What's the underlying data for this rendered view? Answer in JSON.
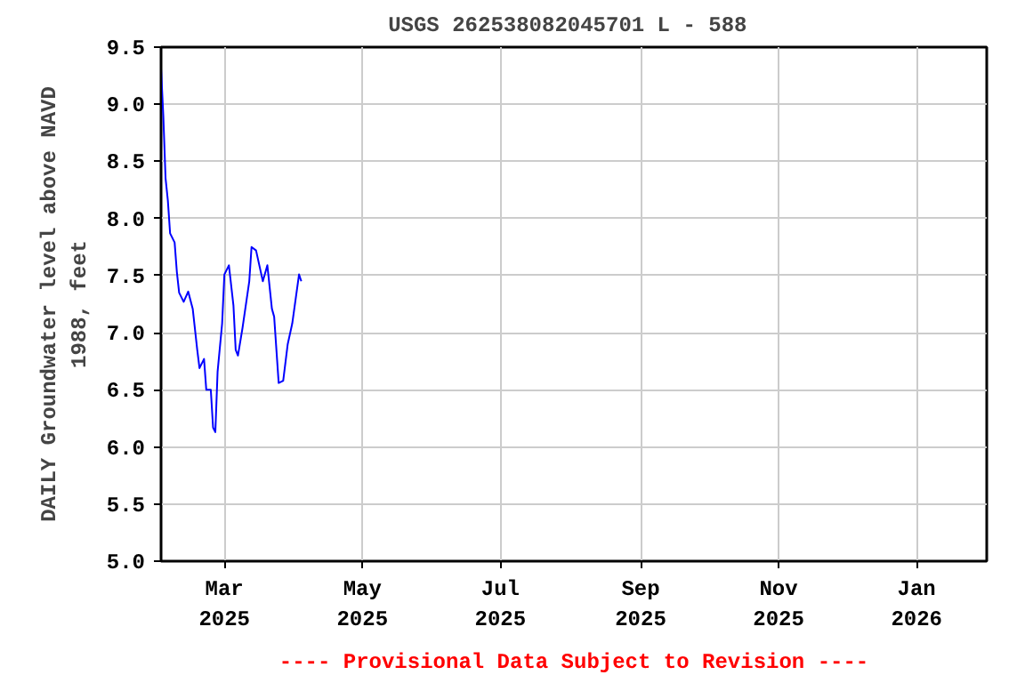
{
  "chart_data": {
    "type": "line",
    "title": "USGS 262538082045701 L  - 588",
    "ylabel": "DAILY Groundwater level above NAVD\n1988, feet",
    "annotations": [
      "---- Provisional Data Subject to Revision ----"
    ],
    "x": [
      "2025-02-01",
      "2025-02-02",
      "2025-02-03",
      "2025-02-04",
      "2025-02-05",
      "2025-02-07",
      "2025-02-08",
      "2025-02-09",
      "2025-02-11",
      "2025-02-13",
      "2025-02-15",
      "2025-02-17",
      "2025-02-18",
      "2025-02-20",
      "2025-02-21",
      "2025-02-23",
      "2025-02-24",
      "2025-02-25",
      "2025-02-26",
      "2025-02-28",
      "2025-03-01",
      "2025-03-03",
      "2025-03-05",
      "2025-03-06",
      "2025-03-07",
      "2025-03-09",
      "2025-03-12",
      "2025-03-13",
      "2025-03-15",
      "2025-03-18",
      "2025-03-20",
      "2025-03-22",
      "2025-03-23",
      "2025-03-25",
      "2025-03-27",
      "2025-03-29",
      "2025-03-31",
      "2025-04-03",
      "2025-04-04"
    ],
    "series": [
      {
        "color": "#0000ff",
        "values": [
          9.31,
          8.9,
          8.35,
          8.16,
          7.87,
          7.79,
          7.53,
          7.35,
          7.27,
          7.36,
          7.21,
          6.85,
          6.69,
          6.77,
          6.5,
          6.5,
          6.17,
          6.13,
          6.66,
          7.08,
          7.51,
          7.59,
          7.24,
          6.85,
          6.8,
          7.04,
          7.45,
          7.75,
          7.72,
          7.45,
          7.59,
          7.21,
          7.14,
          6.56,
          6.58,
          6.9,
          7.08,
          7.51,
          7.45
        ]
      }
    ],
    "xlim": [
      "2025-02-01",
      "2026-02-01"
    ],
    "xticks": [
      {
        "value": "2025-03-01",
        "label": "Mar\n2025"
      },
      {
        "value": "2025-05-01",
        "label": "May\n2025"
      },
      {
        "value": "2025-07-01",
        "label": "Jul\n2025"
      },
      {
        "value": "2025-09-01",
        "label": "Sep\n2025"
      },
      {
        "value": "2025-11-01",
        "label": "Nov\n2025"
      },
      {
        "value": "2026-01-01",
        "label": "Jan\n2026"
      }
    ],
    "ylim": [
      5.0,
      9.5
    ],
    "yticks": [
      {
        "value": 5.0,
        "label": "5.0"
      },
      {
        "value": 5.5,
        "label": "5.5"
      },
      {
        "value": 6.0,
        "label": "6.0"
      },
      {
        "value": 6.5,
        "label": "6.5"
      },
      {
        "value": 7.0,
        "label": "7.0"
      },
      {
        "value": 7.5,
        "label": "7.5"
      },
      {
        "value": 8.0,
        "label": "8.0"
      },
      {
        "value": 8.5,
        "label": "8.5"
      },
      {
        "value": 9.0,
        "label": "9.0"
      },
      {
        "value": 9.5,
        "label": "9.5"
      }
    ],
    "grid": true
  }
}
